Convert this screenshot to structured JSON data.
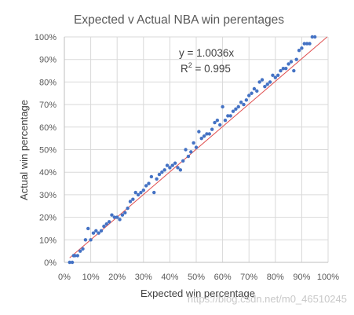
{
  "chart_data": {
    "type": "scatter",
    "title": "Expected  v Actual NBA win perentages",
    "xlabel": "Expected win percentage",
    "ylabel": "Actual win percentage",
    "xlim": [
      0,
      100
    ],
    "ylim": [
      0,
      100
    ],
    "x_ticks": [
      "0%",
      "10%",
      "20%",
      "30%",
      "40%",
      "50%",
      "60%",
      "70%",
      "80%",
      "90%",
      "100%"
    ],
    "y_ticks": [
      "0%",
      "10%",
      "20%",
      "30%",
      "40%",
      "50%",
      "60%",
      "70%",
      "80%",
      "90%",
      "100%"
    ],
    "grid": true,
    "point_color": "#4472c4",
    "trendline_color": "#e05050",
    "trendline": {
      "equation": "y = 1.0036x",
      "r2_label": "R",
      "r2_sup": "2",
      "r2_value": " = 0.995",
      "slope": 1.0036
    },
    "points": [
      [
        2,
        0
      ],
      [
        3,
        0
      ],
      [
        3.5,
        3
      ],
      [
        4,
        3
      ],
      [
        5,
        3
      ],
      [
        6,
        5
      ],
      [
        7,
        6
      ],
      [
        8,
        10
      ],
      [
        9,
        15
      ],
      [
        10,
        10
      ],
      [
        11,
        13
      ],
      [
        12,
        14
      ],
      [
        13,
        13
      ],
      [
        14,
        14
      ],
      [
        15,
        16
      ],
      [
        16,
        17
      ],
      [
        17,
        18
      ],
      [
        18,
        21
      ],
      [
        19,
        20
      ],
      [
        20,
        20
      ],
      [
        21,
        19
      ],
      [
        22,
        21
      ],
      [
        23,
        22
      ],
      [
        24,
        24
      ],
      [
        25,
        27
      ],
      [
        26,
        28
      ],
      [
        27,
        31
      ],
      [
        28,
        30
      ],
      [
        29,
        31
      ],
      [
        30,
        32
      ],
      [
        31,
        34
      ],
      [
        32,
        35
      ],
      [
        33,
        38
      ],
      [
        34,
        31
      ],
      [
        35,
        37
      ],
      [
        36,
        39
      ],
      [
        37,
        40
      ],
      [
        38,
        41
      ],
      [
        39,
        43
      ],
      [
        40,
        42
      ],
      [
        41,
        43
      ],
      [
        42,
        44
      ],
      [
        43,
        42
      ],
      [
        44,
        41
      ],
      [
        45,
        45
      ],
      [
        46,
        50
      ],
      [
        47,
        47
      ],
      [
        48,
        49
      ],
      [
        49,
        53
      ],
      [
        50,
        51
      ],
      [
        51,
        58
      ],
      [
        52,
        55
      ],
      [
        53,
        56
      ],
      [
        54,
        57
      ],
      [
        55,
        57
      ],
      [
        56,
        59
      ],
      [
        57,
        62
      ],
      [
        58,
        63
      ],
      [
        59,
        61
      ],
      [
        60,
        69
      ],
      [
        61,
        63
      ],
      [
        62,
        65
      ],
      [
        63,
        65
      ],
      [
        64,
        67
      ],
      [
        65,
        68
      ],
      [
        66,
        69
      ],
      [
        67,
        71
      ],
      [
        68,
        70
      ],
      [
        69,
        72
      ],
      [
        70,
        74
      ],
      [
        71,
        75
      ],
      [
        72,
        77
      ],
      [
        73,
        76
      ],
      [
        74,
        80
      ],
      [
        75,
        81
      ],
      [
        76,
        78
      ],
      [
        77,
        79
      ],
      [
        78,
        80
      ],
      [
        79,
        83
      ],
      [
        80,
        82
      ],
      [
        81,
        83
      ],
      [
        82,
        85
      ],
      [
        83,
        86
      ],
      [
        84,
        86
      ],
      [
        85,
        88
      ],
      [
        86,
        89
      ],
      [
        87,
        85
      ],
      [
        88,
        90
      ],
      [
        89,
        94
      ],
      [
        90,
        95
      ],
      [
        91,
        97
      ],
      [
        92,
        97
      ],
      [
        93,
        97
      ],
      [
        94,
        100
      ],
      [
        95,
        100
      ]
    ]
  },
  "watermark": "https://blog.csdn.net/m0_46510245"
}
